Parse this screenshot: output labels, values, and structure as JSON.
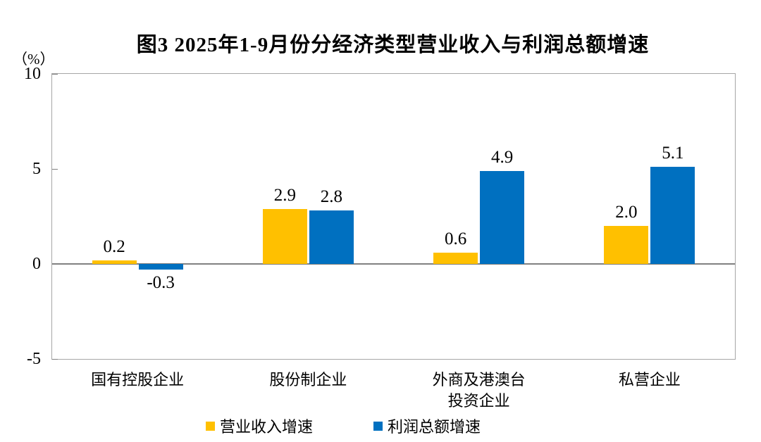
{
  "chart_data": {
    "type": "bar",
    "title": "图3  2025年1-9月份分经济类型营业收入与利润总额增速",
    "unit_label": "（%）",
    "categories": [
      "国有控股企业",
      "股份制企业",
      "外商及港澳台\n投资企业",
      "私营企业"
    ],
    "series": [
      {
        "name": "营业收入增速",
        "color": "#FFC000",
        "values": [
          0.2,
          2.9,
          0.6,
          2.0
        ]
      },
      {
        "name": "利润总额增速",
        "color": "#0070C0",
        "values": [
          -0.3,
          2.8,
          4.9,
          5.1
        ]
      }
    ],
    "ylim": [
      -5,
      10
    ],
    "yticks": [
      10,
      5,
      0,
      -5
    ],
    "grid": false,
    "legend_position": "bottom",
    "value_label_format": "one_decimal",
    "colors": {
      "axis": "#808080",
      "plot_border": "#a6a6a6",
      "text": "#000000",
      "background": "#ffffff"
    }
  }
}
